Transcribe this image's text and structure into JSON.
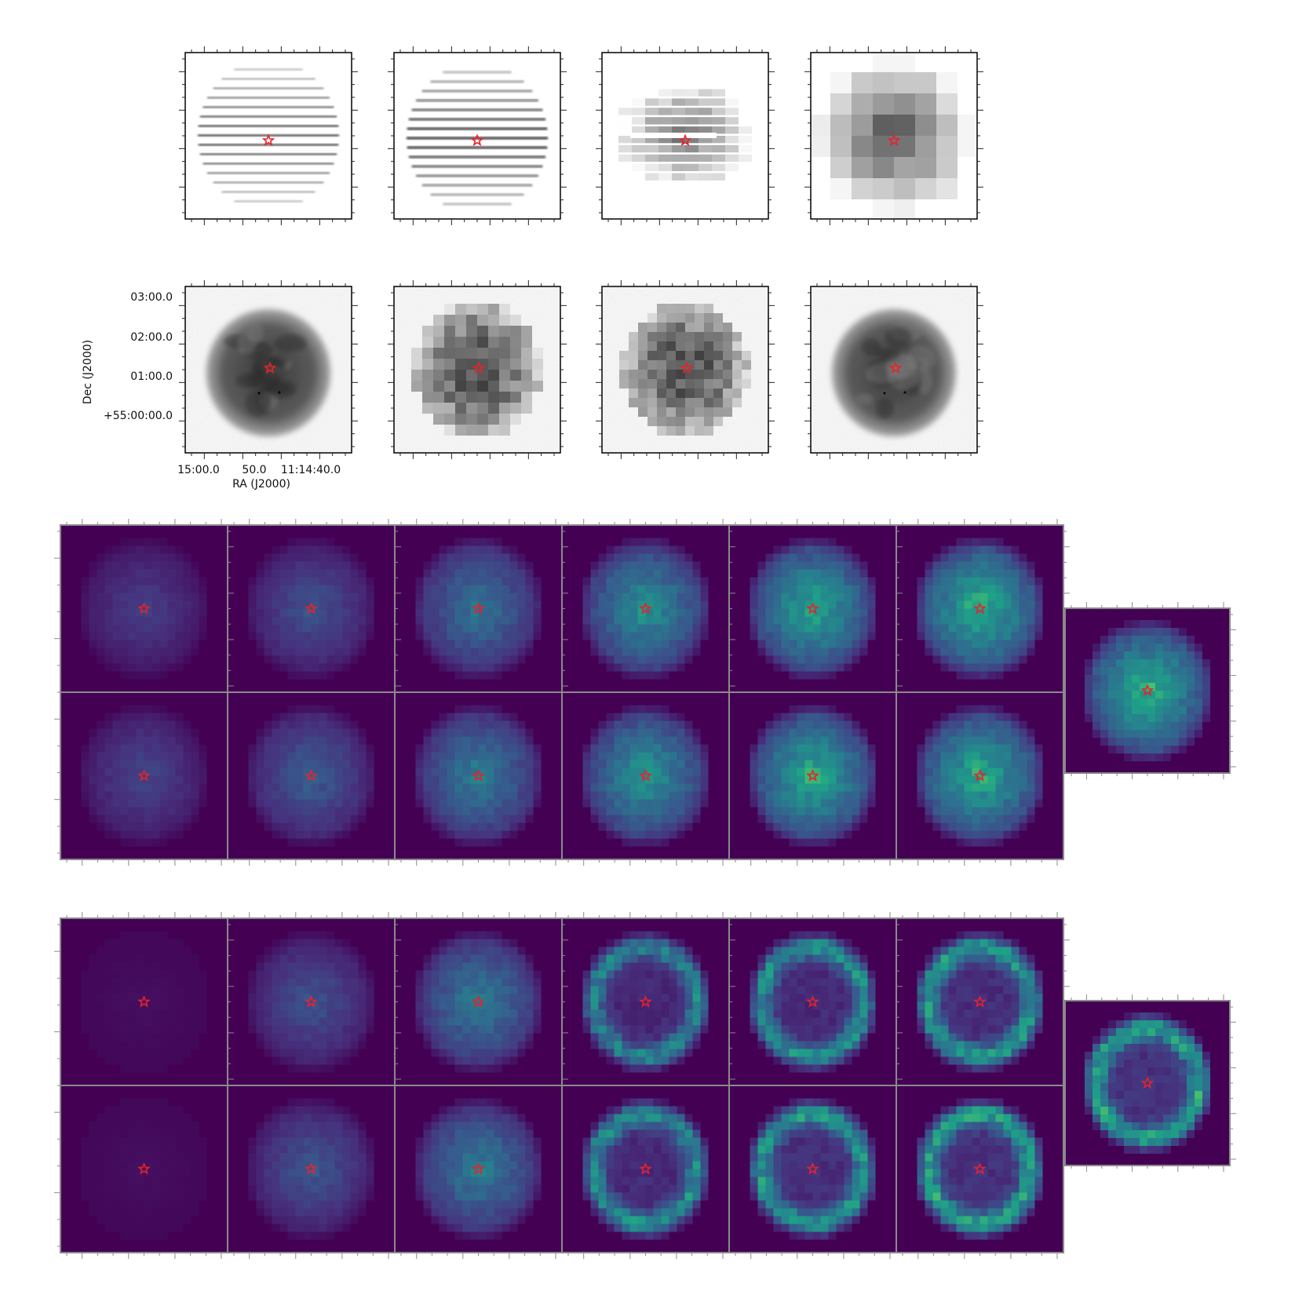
{
  "figure": {
    "top_panels": {
      "dec_axis_label": "Dec (J2000)",
      "ra_axis_label": "RA (J2000)",
      "dec_tick_labels": [
        "03:00.0",
        "02:00.0",
        "01:00.0",
        "+55:00:00.0"
      ],
      "ra_tick_labels": [
        "15:00.0",
        "50.0",
        "11:14:40.0"
      ],
      "row1_panels": [
        "striped-low-res",
        "striped-mid-res",
        "blocky-striped",
        "coarse-blocks"
      ],
      "row2_panels": [
        "nebula-full-res",
        "nebula-blocky",
        "nebula-blocky-alt",
        "nebula-full-res-copy"
      ]
    },
    "bottom_grids": {
      "colormap": "viridis",
      "marker": "red star",
      "grid_a_columns": 6,
      "grid_b_columns": 6
    }
  },
  "colors": {
    "marker_red": "#e8222a",
    "frame_black": "#000000",
    "frame_gray": "#8a8a8a",
    "viridis_dark": "#440154",
    "viridis_mid": "#21918c",
    "viridis_bright": "#fde725"
  }
}
